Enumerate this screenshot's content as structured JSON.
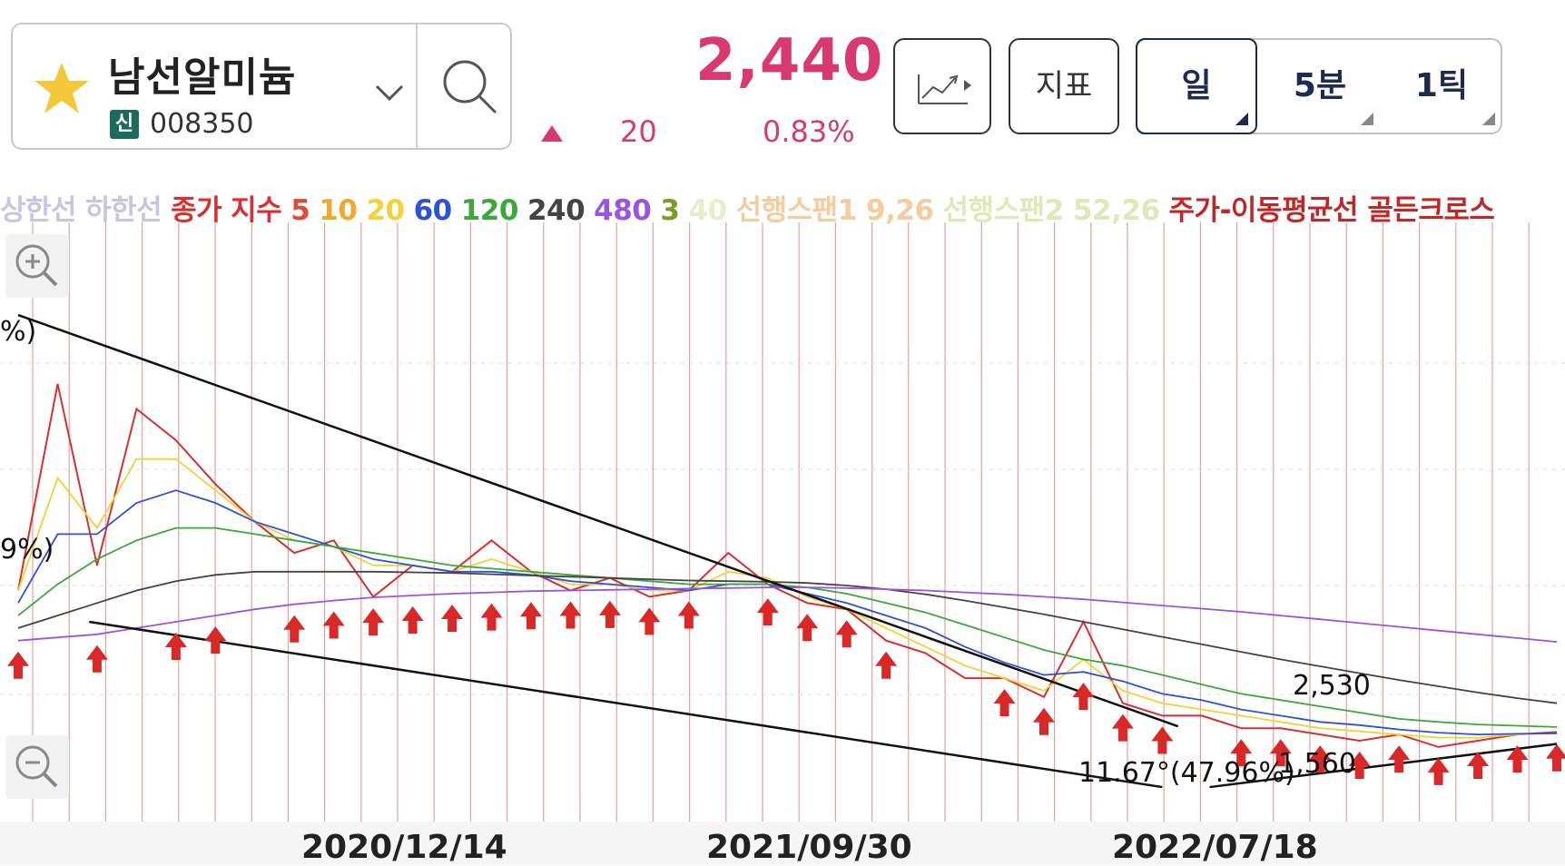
{
  "header": {
    "stock_name": "남선알미늄",
    "badge": "신",
    "code": "008350",
    "price": "2,440",
    "change": "20",
    "change_pct": "0.83%",
    "indicator_btn": "지표",
    "periods": [
      "일",
      "5분",
      "1틱"
    ],
    "selected_period": "일"
  },
  "legend": [
    {
      "text": "상한선",
      "color": "#c9c5e0"
    },
    {
      "text": "하한선",
      "color": "#c9c5e0"
    },
    {
      "text": "종가",
      "color": "#d83030"
    },
    {
      "text": "지수",
      "color": "#d83030"
    },
    {
      "text": "5",
      "color": "#e04a3a"
    },
    {
      "text": "10",
      "color": "#f0a830"
    },
    {
      "text": "20",
      "color": "#f2d23a"
    },
    {
      "text": "60",
      "color": "#2b52d8"
    },
    {
      "text": "120",
      "color": "#3aa83a"
    },
    {
      "text": "240",
      "color": "#444444"
    },
    {
      "text": "480",
      "color": "#9a55e0"
    },
    {
      "text": "3",
      "color": "#7a9a2a"
    },
    {
      "text": "40",
      "color": "#e8efc8"
    },
    {
      "text": "선행스팬1 9,26",
      "color": "#f5cba0"
    },
    {
      "text": "선행스팬2 52,26",
      "color": "#dfe9b8"
    },
    {
      "text": "주가-이동평균선 골든크로스",
      "color": "#c02828"
    }
  ],
  "chart_data": {
    "type": "line",
    "x_ticks": [
      "2020/12/14",
      "2021/09/30",
      "2022/07/18"
    ],
    "annotations": {
      "left_upper": "%)",
      "left_lower": "9%)",
      "resistance_label": "2,530",
      "support_label": "1,560",
      "angle_label": "11.67°(47.96%)"
    },
    "series": [
      {
        "name": "종가",
        "color": "#d83030",
        "values": [
          4700,
          8000,
          5100,
          7600,
          7100,
          6400,
          5800,
          5300,
          5500,
          4600,
          5100,
          5000,
          5500,
          5000,
          4700,
          4900,
          4600,
          4700,
          5300,
          4800,
          4500,
          4400,
          3900,
          3700,
          3300,
          3300,
          3000,
          4200,
          2900,
          2700,
          2700,
          2500,
          2500,
          2400,
          2300,
          2400,
          2200,
          2300,
          2400,
          2440
        ]
      },
      {
        "name": "20",
        "color": "#f2d23a",
        "values": [
          4700,
          6500,
          5700,
          6800,
          6800,
          6300,
          5800,
          5500,
          5400,
          5100,
          5100,
          5000,
          5200,
          5000,
          4800,
          4800,
          4700,
          4700,
          5000,
          4900,
          4600,
          4400,
          4100,
          3800,
          3500,
          3300,
          3100,
          3600,
          3100,
          2900,
          2800,
          2700,
          2600,
          2500,
          2450,
          2400,
          2350,
          2350,
          2400,
          2420
        ]
      },
      {
        "name": "60",
        "color": "#2b52d8",
        "values": [
          4500,
          5600,
          5600,
          6100,
          6300,
          6100,
          5800,
          5600,
          5400,
          5200,
          5100,
          5000,
          5000,
          4950,
          4850,
          4800,
          4750,
          4700,
          4800,
          4800,
          4650,
          4500,
          4300,
          4100,
          3800,
          3550,
          3350,
          3400,
          3250,
          3050,
          2950,
          2800,
          2700,
          2600,
          2550,
          2480,
          2430,
          2400,
          2410,
          2420
        ]
      },
      {
        "name": "120",
        "color": "#3aa83a",
        "values": [
          4300,
          4800,
          5200,
          5500,
          5700,
          5700,
          5600,
          5500,
          5400,
          5300,
          5200,
          5100,
          5050,
          5000,
          4950,
          4900,
          4850,
          4800,
          4800,
          4800,
          4750,
          4650,
          4500,
          4350,
          4150,
          3950,
          3750,
          3600,
          3500,
          3350,
          3200,
          3050,
          2950,
          2850,
          2750,
          2650,
          2600,
          2560,
          2540,
          2520
        ]
      },
      {
        "name": "240",
        "color": "#444444",
        "values": [
          4100,
          4300,
          4500,
          4700,
          4850,
          4950,
          5000,
          5000,
          5000,
          5000,
          4990,
          4980,
          4960,
          4940,
          4920,
          4900,
          4880,
          4860,
          4850,
          4840,
          4820,
          4780,
          4720,
          4640,
          4540,
          4430,
          4320,
          4200,
          4080,
          3960,
          3840,
          3720,
          3600,
          3490,
          3380,
          3270,
          3170,
          3070,
          2980,
          2900
        ]
      },
      {
        "name": "480",
        "color": "#9a55e0",
        "values": [
          3900,
          3950,
          4000,
          4100,
          4200,
          4300,
          4400,
          4480,
          4540,
          4590,
          4620,
          4650,
          4670,
          4690,
          4700,
          4710,
          4720,
          4730,
          4740,
          4750,
          4750,
          4740,
          4720,
          4700,
          4670,
          4640,
          4600,
          4560,
          4510,
          4460,
          4410,
          4360,
          4300,
          4240,
          4180,
          4120,
          4060,
          4000,
          3940,
          3880
        ]
      }
    ],
    "trendlines": [
      {
        "name": "upper",
        "from": [
          0,
          9100
        ],
        "to": [
          29.4,
          2530
        ]
      },
      {
        "name": "lower",
        "from": [
          1.8,
          4200
        ],
        "to": [
          29.0,
          1560
        ]
      },
      {
        "name": "rising-support",
        "from": [
          30.2,
          1560
        ],
        "to": [
          39,
          2250
        ]
      }
    ],
    "golden_cross_indices": [
      0,
      2,
      4,
      5,
      7,
      8,
      9,
      10,
      11,
      12,
      13,
      14,
      15,
      16,
      17,
      19,
      20,
      21,
      22,
      25,
      26,
      27,
      28,
      29,
      31,
      32,
      33,
      34,
      35,
      36,
      37,
      38,
      39
    ],
    "ylim": [
      1300,
      10000
    ],
    "grid": true
  }
}
